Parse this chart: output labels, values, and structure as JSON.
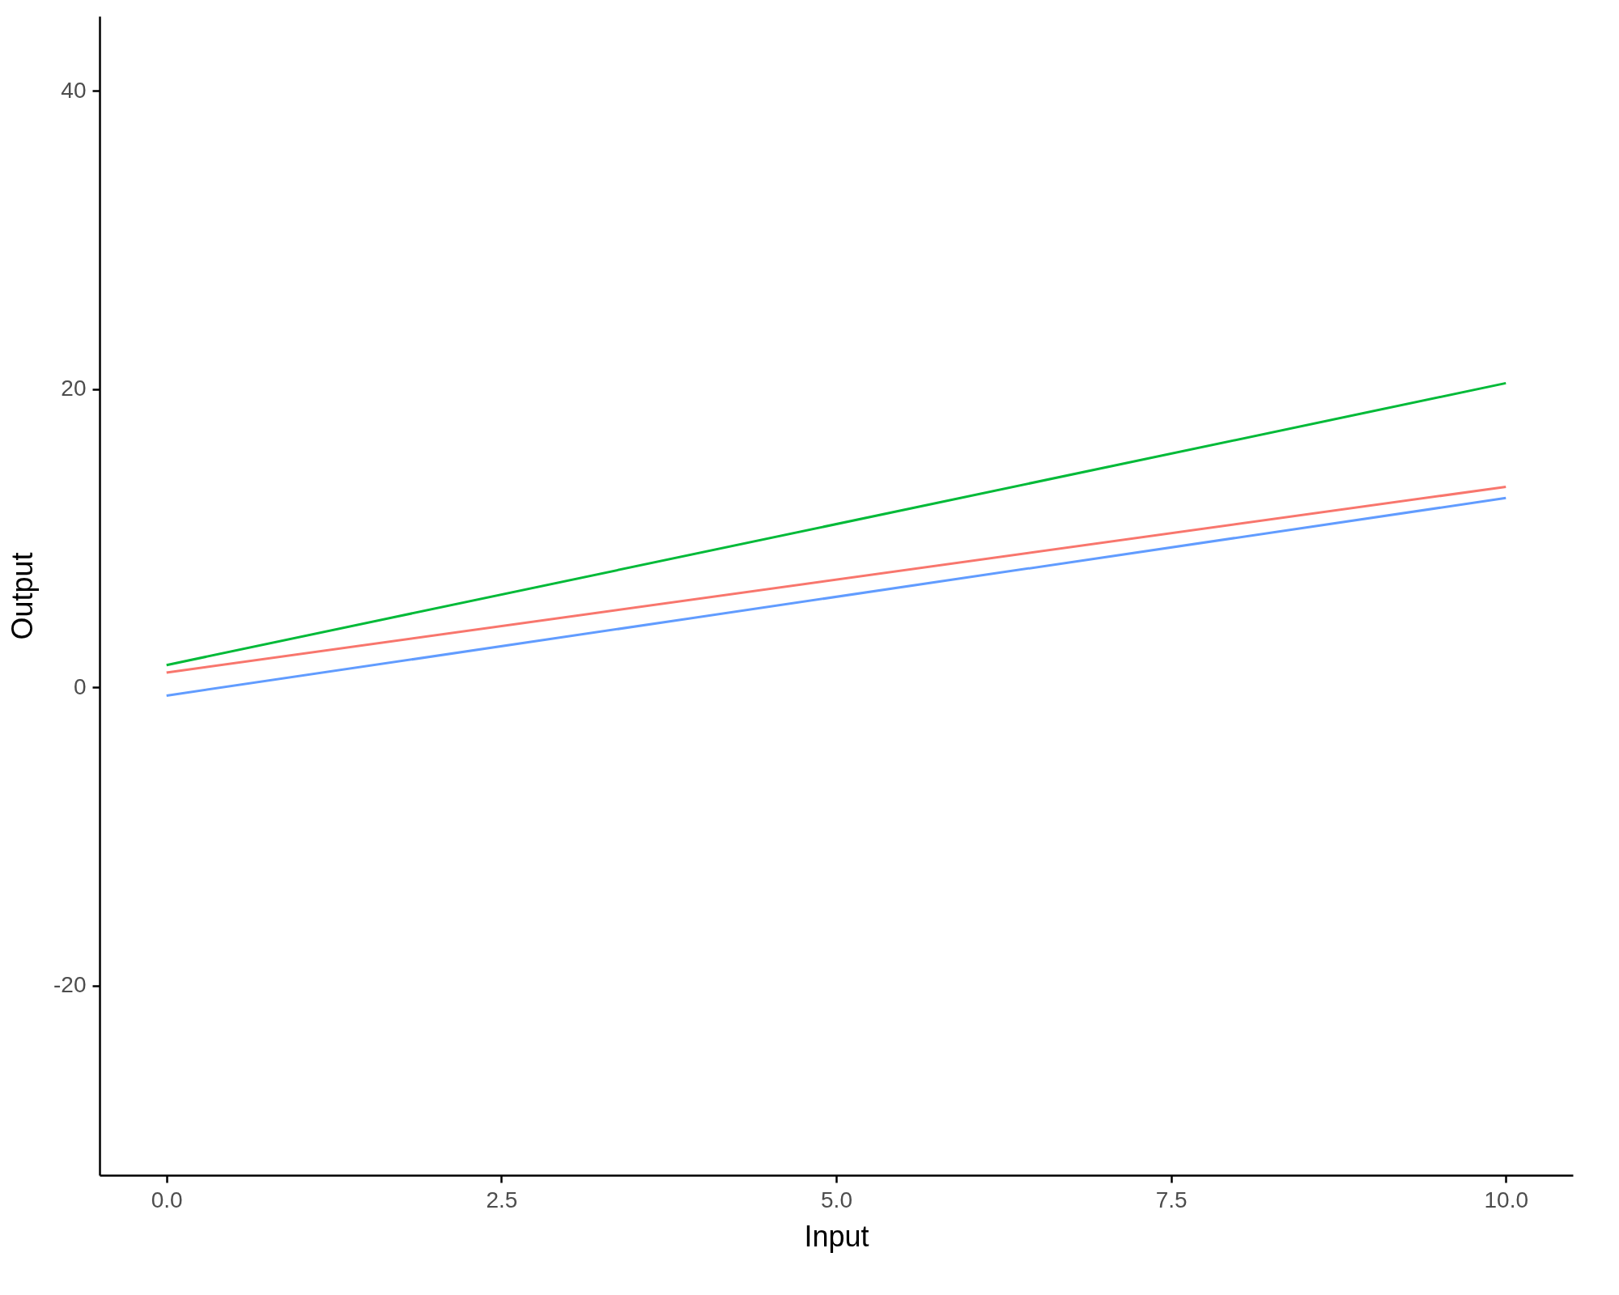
{
  "chart_data": {
    "type": "line",
    "xlabel": "Input",
    "ylabel": "Output",
    "xlim": [
      -0.5,
      10.5
    ],
    "ylim": [
      -32.7,
      45
    ],
    "xticks": [
      {
        "value": 0,
        "label": "0.0"
      },
      {
        "value": 2.5,
        "label": "2.5"
      },
      {
        "value": 5,
        "label": "5.0"
      },
      {
        "value": 7.5,
        "label": "7.5"
      },
      {
        "value": 10,
        "label": "10.0"
      }
    ],
    "yticks": [
      -20,
      0,
      20,
      40
    ],
    "x": [
      0,
      10
    ],
    "series": [
      {
        "color": "#f8766d",
        "values": [
          1.0,
          13.45
        ]
      },
      {
        "color": "#00ba38",
        "values": [
          1.5,
          20.4
        ]
      },
      {
        "color": "#619cff",
        "values": [
          -0.55,
          12.7
        ]
      }
    ]
  }
}
